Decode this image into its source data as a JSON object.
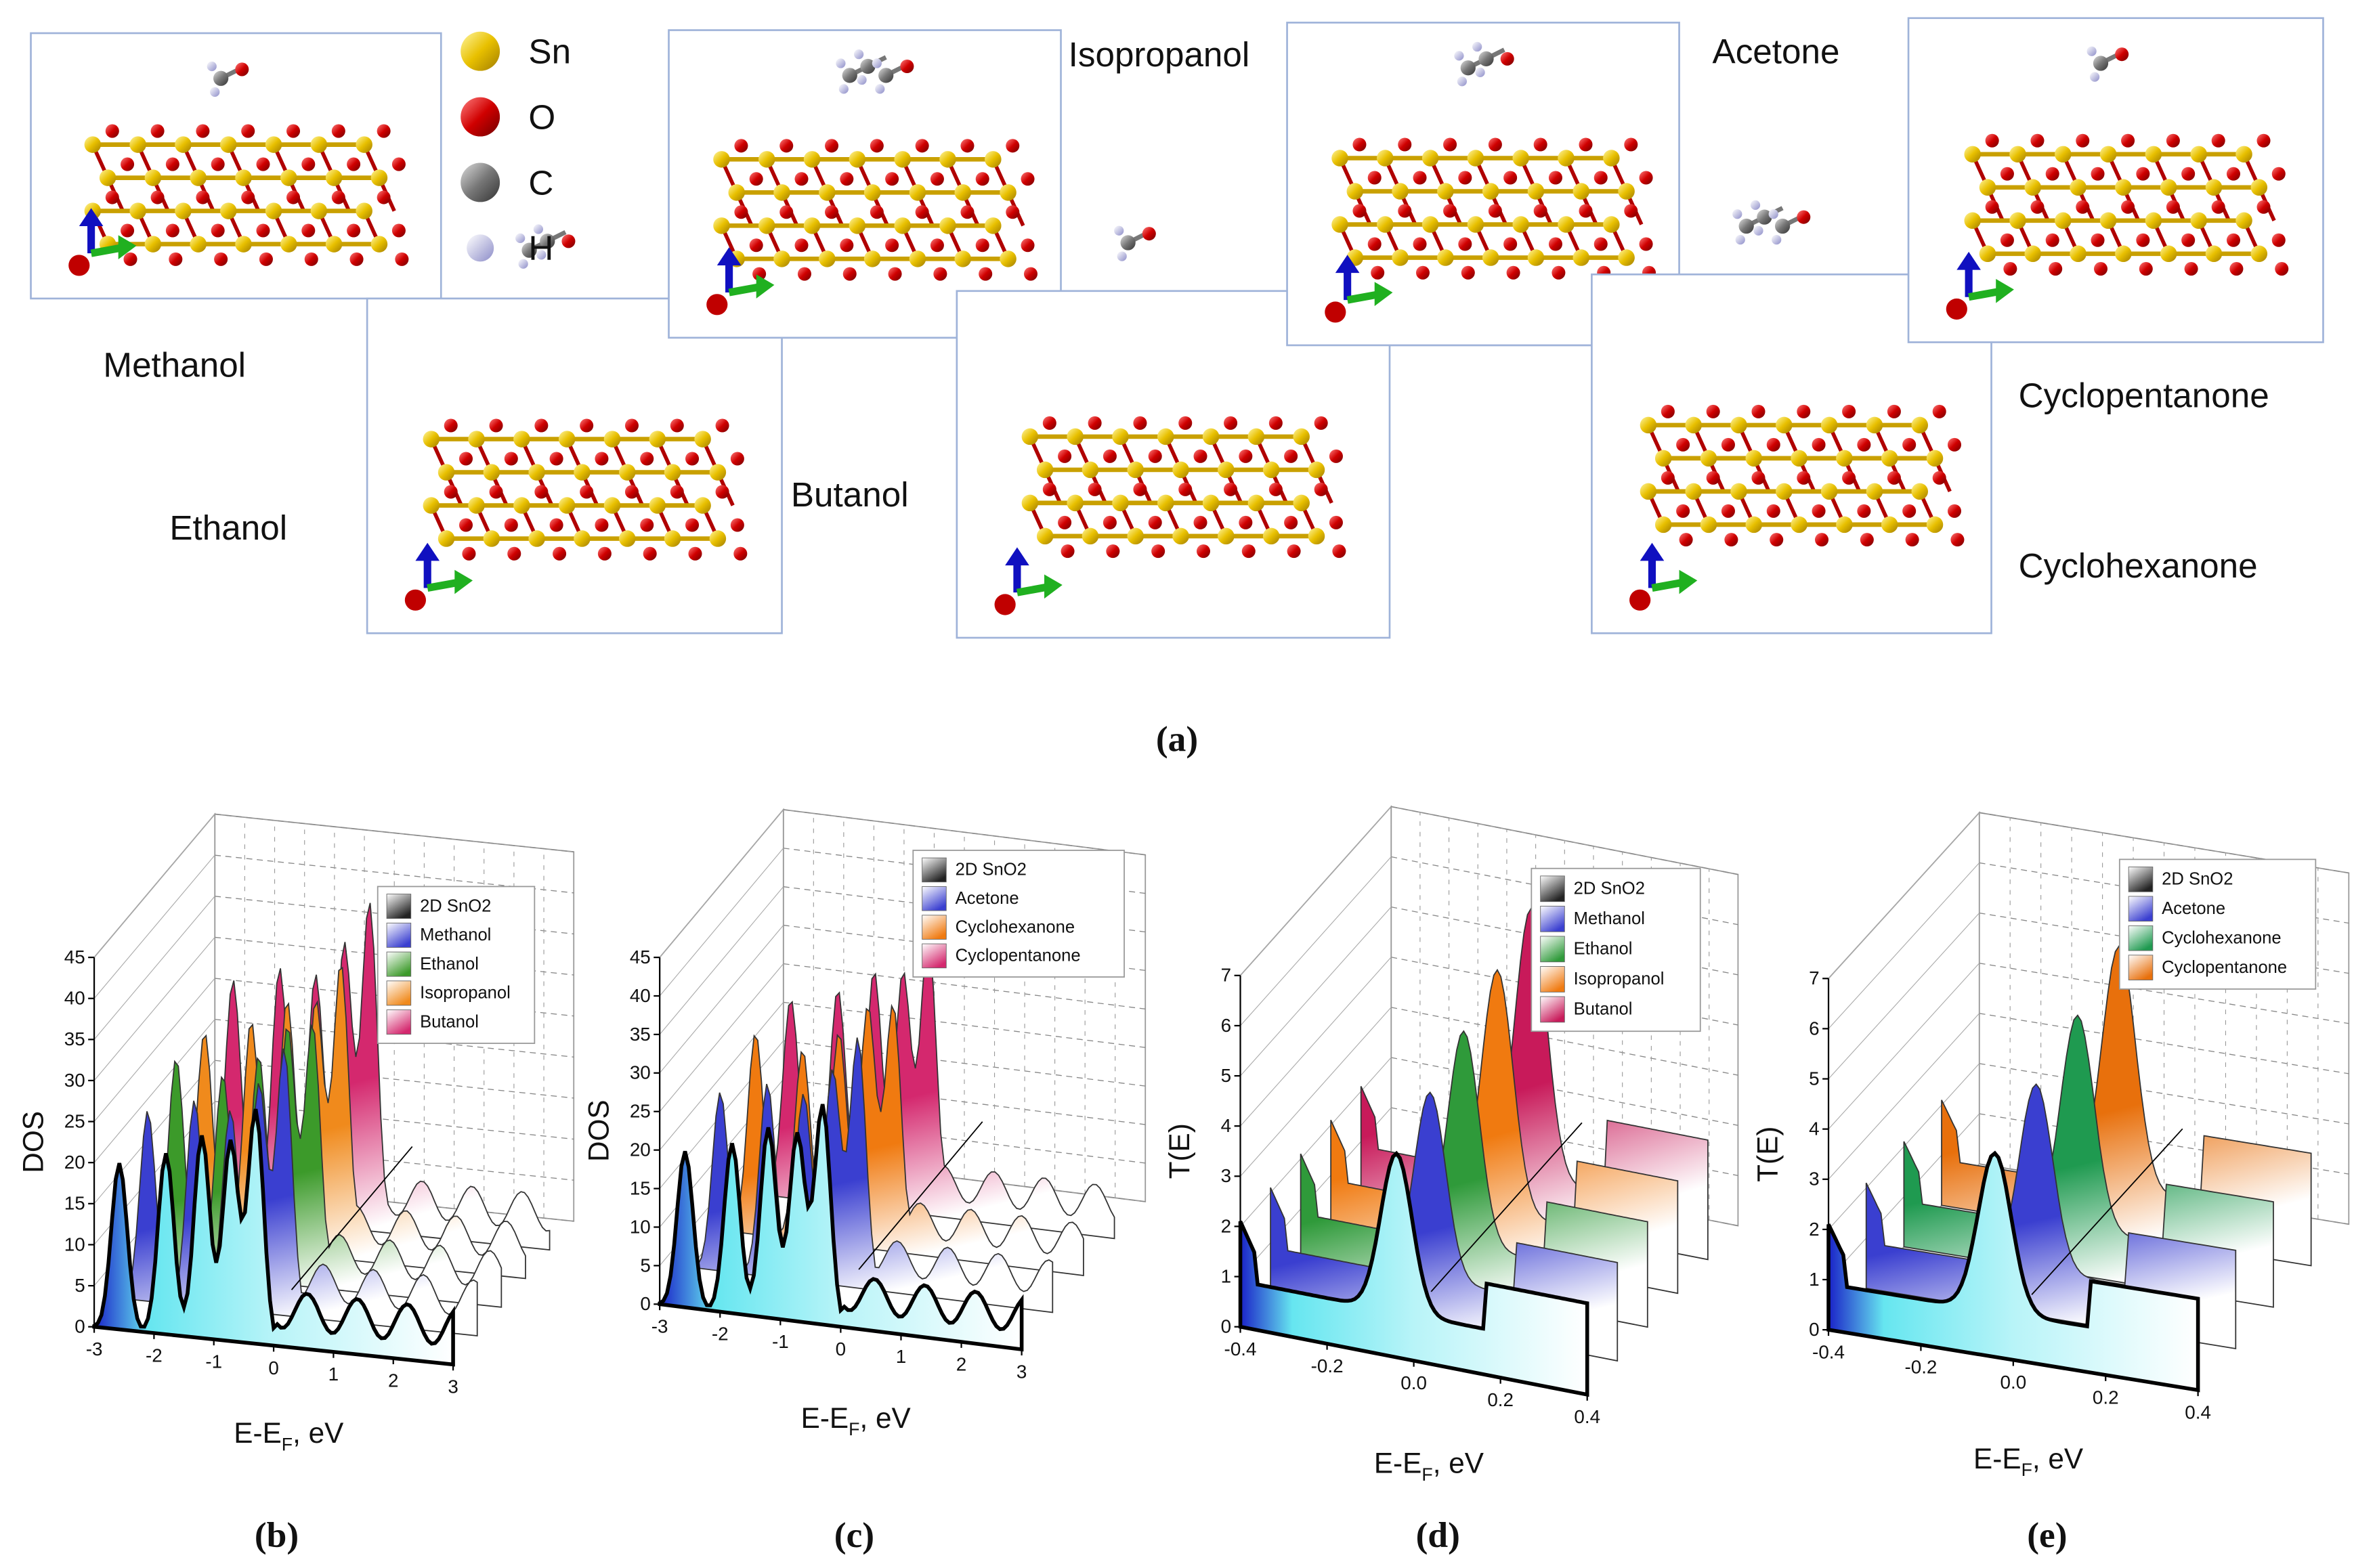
{
  "panel_a": {
    "element_legend": [
      "Sn",
      "O",
      "C",
      "H"
    ],
    "molecules": [
      "Methanol",
      "Ethanol",
      "Isopropanol",
      "Butanol",
      "Acetone",
      "Cyclohexanone",
      "Cyclopentanone"
    ],
    "caption": "(a)"
  },
  "charts": [
    {
      "y_label": "DOS",
      "x_label": [
        "E-E",
        "F",
        ", eV"
      ],
      "y_ticks": [
        "0",
        "5",
        "10",
        "15",
        "20",
        "25",
        "30",
        "35",
        "40",
        "45"
      ],
      "x_ticks": [
        "-3",
        "-2",
        "-1",
        "0",
        "1",
        "2",
        "3"
      ],
      "legend": [
        "2D SnO2",
        "Methanol",
        "Ethanol",
        "Isopropanol",
        "Butanol"
      ],
      "colors": [
        "#222222",
        "#3a3fd0",
        "#3c9a2a",
        "#f08a1c",
        "#d4286e"
      ],
      "caption": "(b)"
    },
    {
      "y_label": "DOS",
      "x_label": [
        "E-E",
        "F",
        ", eV"
      ],
      "y_ticks": [
        "0",
        "5",
        "10",
        "15",
        "20",
        "25",
        "30",
        "35",
        "40",
        "45"
      ],
      "x_ticks": [
        "-3",
        "-2",
        "-1",
        "0",
        "1",
        "2",
        "3"
      ],
      "legend": [
        "2D SnO2",
        "Acetone",
        "Cyclohexanone",
        "Cyclopentanone"
      ],
      "colors": [
        "#222222",
        "#3a3fd0",
        "#f07a10",
        "#d4286e"
      ],
      "caption": "(c)"
    },
    {
      "y_label": "T(E)",
      "x_label": [
        "E-E",
        "F",
        ", eV"
      ],
      "y_ticks": [
        "0",
        "1",
        "2",
        "3",
        "4",
        "5",
        "6",
        "7"
      ],
      "x_ticks": [
        "-0.4",
        "-0.2",
        "0.0",
        "0.2",
        "0.4"
      ],
      "legend": [
        "2D SnO2",
        "Methanol",
        "Ethanol",
        "Isopropanol",
        "Butanol"
      ],
      "colors": [
        "#222222",
        "#3a3fd0",
        "#2f9a3a",
        "#f07a10",
        "#c81a5a"
      ],
      "caption": "(d)"
    },
    {
      "y_label": "T(E)",
      "x_label": [
        "E-E",
        "F",
        ", eV"
      ],
      "y_ticks": [
        "0",
        "1",
        "2",
        "3",
        "4",
        "5",
        "6",
        "7"
      ],
      "x_ticks": [
        "-0.4",
        "-0.2",
        "0.0",
        "0.2",
        "0.4"
      ],
      "legend": [
        "2D SnO2",
        "Acetone",
        "Cyclohexanone",
        "Cyclopentanone"
      ],
      "colors": [
        "#222222",
        "#3a3fd0",
        "#1f9a50",
        "#e8700c"
      ],
      "caption": "(e)"
    }
  ]
}
